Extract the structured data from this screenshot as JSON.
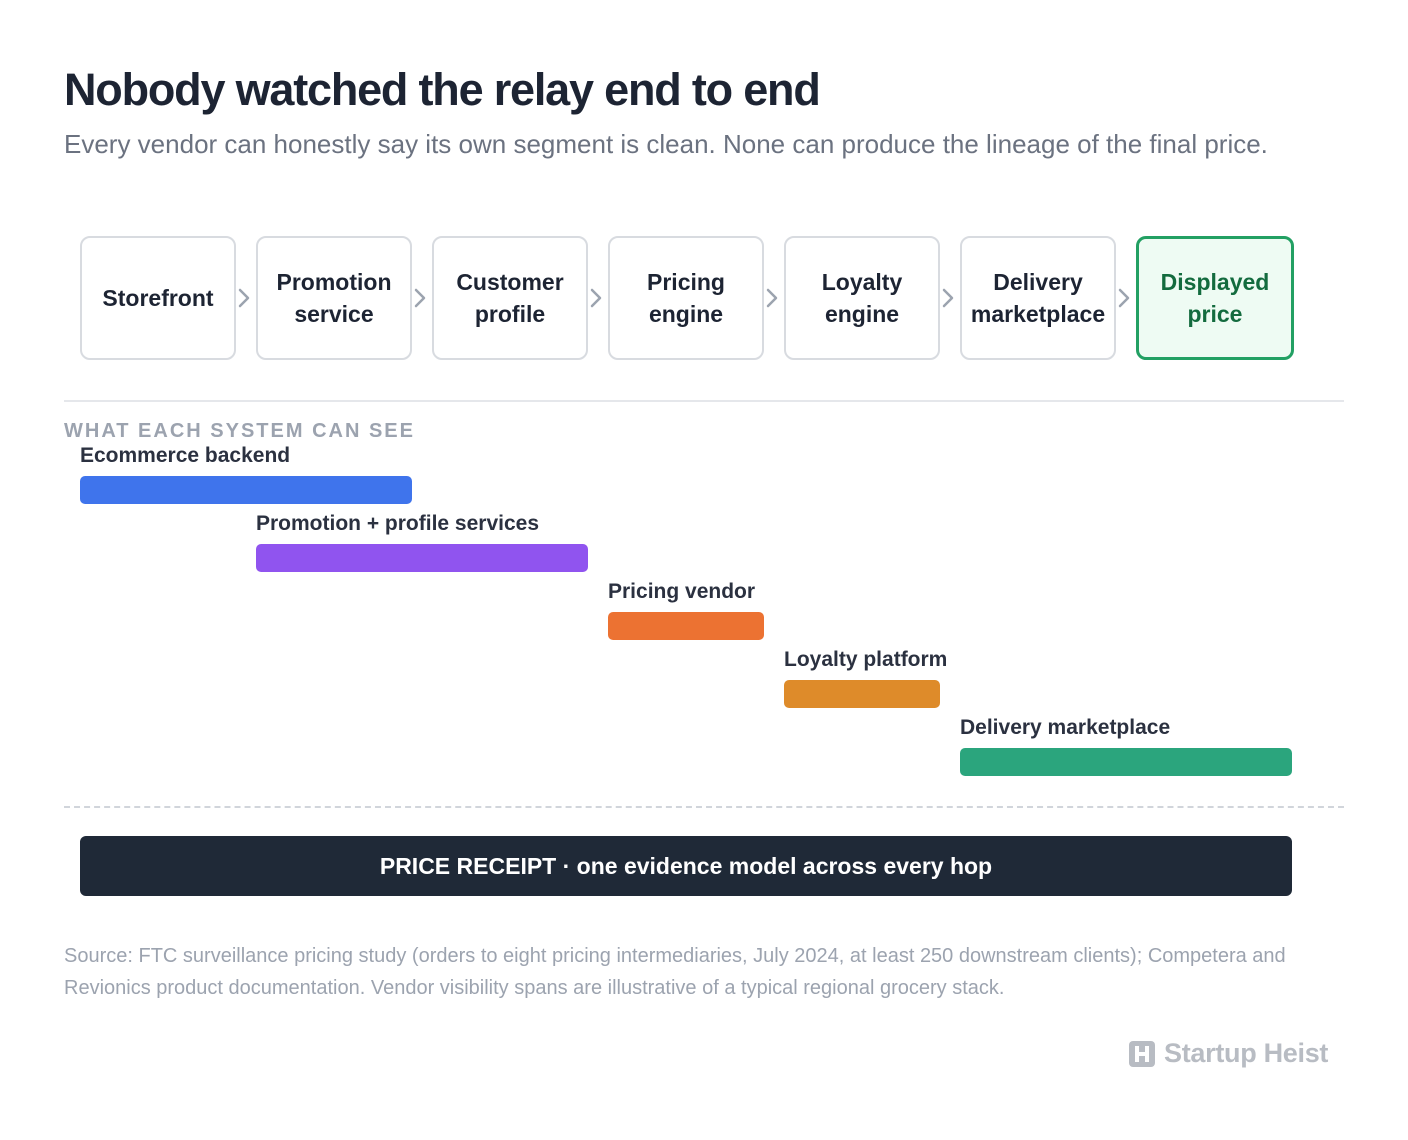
{
  "header": {
    "title": "Nobody watched the relay end to end",
    "subtitle": "Every vendor can honestly say its own segment is clean. None can produce the lineage of the final price."
  },
  "flow": {
    "nodes": [
      "Storefront",
      "Promotion service",
      "Customer profile",
      "Pricing engine",
      "Loyalty engine",
      "Delivery marketplace",
      "Displayed price"
    ],
    "final_color": "#22a063"
  },
  "visibility": {
    "section_label": "WHAT EACH SYSTEM CAN SEE",
    "spans": [
      {
        "label": "Ecommerce backend",
        "from_stage": 1,
        "to_stage": 2,
        "color": "#3f74ec"
      },
      {
        "label": "Promotion + profile services",
        "from_stage": 2,
        "to_stage": 3,
        "color": "#9054ef"
      },
      {
        "label": "Pricing vendor",
        "from_stage": 4,
        "to_stage": 4,
        "color": "#ec7232"
      },
      {
        "label": "Loyalty platform",
        "from_stage": 5,
        "to_stage": 5,
        "color": "#de8b2a"
      },
      {
        "label": "Delivery marketplace",
        "from_stage": 6,
        "to_stage": 7,
        "color": "#2ba57d"
      }
    ]
  },
  "banner": {
    "text": "PRICE RECEIPT · one evidence model across every hop"
  },
  "footer": {
    "source": "Source: FTC surveillance pricing study (orders to eight pricing intermediaries, July 2024, at least 250 downstream clients); Competera and Revionics product documentation. Vendor visibility spans are illustrative of a typical regional grocery stack.",
    "brand": "Startup Heist",
    "brand_icon": "h-logo-icon"
  }
}
